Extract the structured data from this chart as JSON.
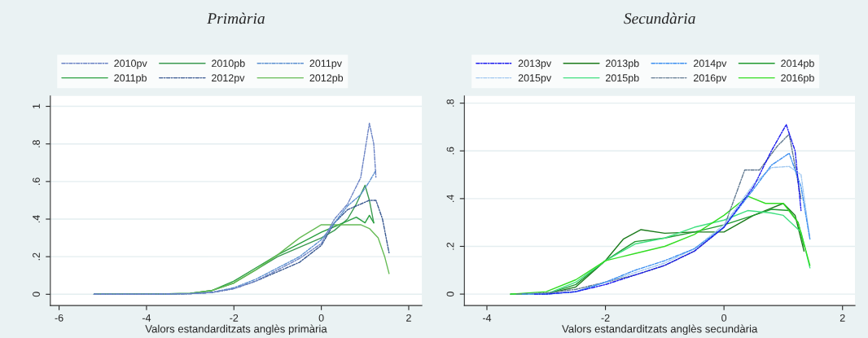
{
  "chart_data": [
    {
      "type": "line",
      "title": "Primària",
      "xlabel": "Valors estandarditzats anglès primària",
      "xlim": [
        -6.2,
        2.3
      ],
      "ylim": [
        -0.06,
        1.055
      ],
      "xticks": [
        -6,
        -4,
        -2,
        0,
        2
      ],
      "yticks": [
        0,
        {
          "value": 0.2,
          "label": ".2"
        },
        {
          "value": 0.4,
          "label": ".4"
        },
        {
          "value": 0.6,
          "label": ".6"
        },
        {
          "value": 0.8,
          "label": ".8"
        },
        1
      ],
      "grid": "y",
      "legend": "top",
      "marker": "none",
      "series": [
        {
          "name": "2010pv",
          "color": "#6a82c4",
          "line_style": "dashed",
          "x": [
            -5.2,
            -4,
            -3,
            -2.5,
            -2,
            -1.5,
            -1,
            -0.5,
            0,
            0.3,
            0.6,
            0.9,
            1.1,
            1.2,
            1.25
          ],
          "values": [
            0,
            0,
            0.003,
            0.01,
            0.03,
            0.07,
            0.13,
            0.19,
            0.27,
            0.4,
            0.48,
            0.62,
            0.91,
            0.8,
            0.62
          ]
        },
        {
          "name": "2010pb",
          "color": "#3a9a50",
          "line_style": "solid",
          "x": [
            -5.2,
            -4,
            -3,
            -2.5,
            -2,
            -1.5,
            -1,
            -0.5,
            0,
            0.3,
            0.6,
            0.8,
            1.0,
            1.1,
            1.2
          ],
          "values": [
            0,
            0,
            0.005,
            0.02,
            0.06,
            0.13,
            0.2,
            0.25,
            0.3,
            0.34,
            0.4,
            0.48,
            0.58,
            0.5,
            0.38
          ]
        },
        {
          "name": "2011pv",
          "color": "#5b8fd0",
          "line_style": "dashed",
          "x": [
            -5.2,
            -4,
            -3,
            -2.5,
            -2,
            -1.5,
            -1,
            -0.5,
            0,
            0.3,
            0.6,
            0.9,
            1.1,
            1.25
          ],
          "values": [
            0,
            0,
            0.003,
            0.01,
            0.035,
            0.08,
            0.14,
            0.2,
            0.29,
            0.38,
            0.47,
            0.53,
            0.6,
            0.66
          ]
        },
        {
          "name": "2011pb",
          "color": "#2aa040",
          "line_style": "solid",
          "x": [
            -5.2,
            -4,
            -3,
            -2.5,
            -2,
            -1.5,
            -1,
            -0.5,
            0,
            0.3,
            0.6,
            0.8,
            1.0,
            1.1,
            1.2
          ],
          "values": [
            0,
            0,
            0.005,
            0.02,
            0.07,
            0.14,
            0.21,
            0.27,
            0.33,
            0.36,
            0.39,
            0.41,
            0.38,
            0.42,
            0.38
          ]
        },
        {
          "name": "2012pv",
          "color": "#36568f",
          "line_style": "dashed",
          "x": [
            -5.2,
            -4,
            -3,
            -2.5,
            -2,
            -1.5,
            -1,
            -0.5,
            0,
            0.3,
            0.6,
            0.9,
            1.1,
            1.25,
            1.4,
            1.55
          ],
          "values": [
            0,
            0,
            0.003,
            0.01,
            0.03,
            0.07,
            0.12,
            0.17,
            0.26,
            0.38,
            0.45,
            0.48,
            0.5,
            0.5,
            0.4,
            0.22
          ]
        },
        {
          "name": "2012pb",
          "color": "#66bb55",
          "line_style": "solid",
          "x": [
            -5.2,
            -4,
            -3,
            -2.5,
            -2,
            -1.5,
            -1,
            -0.5,
            0,
            0.3,
            0.6,
            0.9,
            1.1,
            1.3,
            1.45,
            1.55
          ],
          "values": [
            0,
            0,
            0.004,
            0.02,
            0.06,
            0.13,
            0.21,
            0.3,
            0.37,
            0.37,
            0.37,
            0.37,
            0.35,
            0.3,
            0.2,
            0.11
          ]
        }
      ]
    },
    {
      "type": "line",
      "title": "Secundària",
      "xlabel": "Valors estandarditzats anglès secundària",
      "xlim": [
        -4.38,
        2.21
      ],
      "ylim": [
        -0.048,
        0.83
      ],
      "xticks": [
        -4,
        -2,
        0,
        2
      ],
      "yticks": [
        0,
        {
          "value": 0.2,
          "label": ".2"
        },
        {
          "value": 0.4,
          "label": ".4"
        },
        {
          "value": 0.6,
          "label": ".6"
        },
        {
          "value": 0.8,
          "label": ".8"
        }
      ],
      "grid": "y",
      "legend": "top",
      "marker": "none",
      "series": [
        {
          "name": "2013pv",
          "color": "#1a1aee",
          "line_style": "dashed",
          "x": [
            -3.2,
            -3,
            -2.5,
            -2,
            -1.5,
            -1,
            -0.5,
            0,
            0.5,
            0.8,
            1.05,
            1.2,
            1.3
          ],
          "values": [
            0,
            0,
            0.01,
            0.04,
            0.08,
            0.12,
            0.18,
            0.28,
            0.45,
            0.6,
            0.71,
            0.6,
            0.35
          ]
        },
        {
          "name": "2013pb",
          "color": "#1a7a1a",
          "line_style": "solid",
          "x": [
            -3.6,
            -3,
            -2.5,
            -2,
            -1.7,
            -1.4,
            -1,
            -0.5,
            0,
            0.5,
            1.0,
            1.2,
            1.35
          ],
          "values": [
            0,
            0,
            0.03,
            0.14,
            0.23,
            0.27,
            0.255,
            0.26,
            0.26,
            0.33,
            0.38,
            0.33,
            0.18
          ]
        },
        {
          "name": "2014pv",
          "color": "#3a8ef0",
          "line_style": "dashed",
          "x": [
            -3.4,
            -3,
            -2.5,
            -2,
            -1.5,
            -1,
            -0.5,
            0,
            0.5,
            0.8,
            1.1,
            1.3,
            1.45
          ],
          "values": [
            0,
            0,
            0.01,
            0.05,
            0.1,
            0.14,
            0.19,
            0.28,
            0.44,
            0.54,
            0.59,
            0.45,
            0.23
          ]
        },
        {
          "name": "2014pb",
          "color": "#1f9a2f",
          "line_style": "solid",
          "x": [
            -3.6,
            -3,
            -2.5,
            -2,
            -1.5,
            -1,
            -0.5,
            0,
            0.5,
            0.8,
            1.1,
            1.25,
            1.35
          ],
          "values": [
            0,
            0,
            0.04,
            0.14,
            0.22,
            0.235,
            0.26,
            0.29,
            0.33,
            0.355,
            0.35,
            0.3,
            0.2
          ]
        },
        {
          "name": "2015pv",
          "color": "#a0c8f0",
          "line_style": "dashed",
          "x": [
            -3.3,
            -3,
            -2.5,
            -2,
            -1.5,
            -1,
            -0.5,
            0,
            0.5,
            0.8,
            1.1,
            1.3,
            1.45
          ],
          "values": [
            0,
            0,
            0.01,
            0.05,
            0.09,
            0.13,
            0.19,
            0.29,
            0.46,
            0.53,
            0.535,
            0.5,
            0.23
          ]
        },
        {
          "name": "2015pb",
          "color": "#40e080",
          "line_style": "solid",
          "x": [
            -3.6,
            -3,
            -2.5,
            -2,
            -1.5,
            -1,
            -0.5,
            0,
            0.4,
            0.8,
            1.0,
            1.3,
            1.45
          ],
          "values": [
            0,
            0,
            0.05,
            0.14,
            0.21,
            0.235,
            0.28,
            0.31,
            0.35,
            0.34,
            0.33,
            0.26,
            0.11
          ]
        },
        {
          "name": "2016pv",
          "color": "#607890",
          "line_style": "dashed",
          "x": [
            -3.5,
            -3,
            -2.5,
            -2,
            -1.5,
            -1,
            -0.5,
            0,
            0.35,
            0.6,
            0.9,
            1.1,
            1.3
          ],
          "values": [
            0,
            0.005,
            0.02,
            0.05,
            0.08,
            0.12,
            0.18,
            0.28,
            0.52,
            0.52,
            0.62,
            0.67,
            0.4
          ]
        },
        {
          "name": "2016pb",
          "color": "#33dd22",
          "line_style": "solid",
          "x": [
            -3.6,
            -3,
            -2.5,
            -2,
            -1.5,
            -1,
            -0.5,
            0,
            0.4,
            0.7,
            1.0,
            1.25,
            1.45
          ],
          "values": [
            0,
            0.01,
            0.06,
            0.14,
            0.17,
            0.2,
            0.25,
            0.33,
            0.41,
            0.38,
            0.38,
            0.3,
            0.12
          ]
        }
      ]
    }
  ]
}
